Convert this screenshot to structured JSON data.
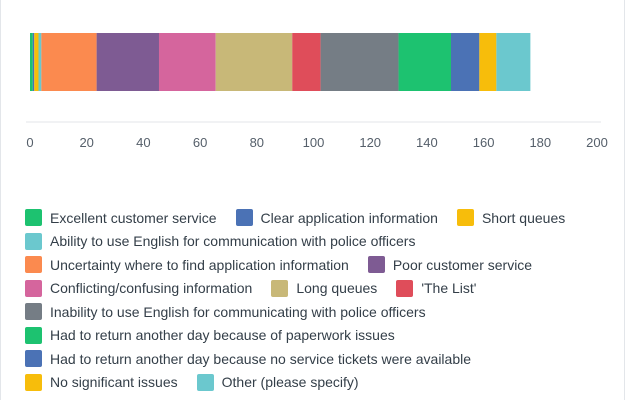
{
  "chart_data": {
    "type": "bar",
    "orientation": "horizontal",
    "stacked": true,
    "title": "",
    "xlabel": "",
    "ylabel": "",
    "xlim": [
      0,
      200
    ],
    "xticks": [
      0,
      20,
      40,
      60,
      80,
      100,
      120,
      140,
      160,
      180,
      200
    ],
    "grid": false,
    "legend_position": "bottom",
    "series": [
      {
        "name": "Excellent customer service",
        "value": 1,
        "color": "#1dc270"
      },
      {
        "name": "Clear application information",
        "value": 0.5,
        "color": "#4b72b5"
      },
      {
        "name": "Short queues",
        "value": 1.5,
        "color": "#f7bd0b"
      },
      {
        "name": "Ability to use English for communication with police officers",
        "value": 1,
        "color": "#6bc8ce"
      },
      {
        "name": "Uncertainty where to find application information",
        "value": 19.5,
        "color": "#fb8a4f"
      },
      {
        "name": "Poor customer service",
        "value": 22,
        "color": "#7e5b93"
      },
      {
        "name": "Conflicting/confusing information",
        "value": 20,
        "color": "#d5659d"
      },
      {
        "name": "Long queues",
        "value": 27,
        "color": "#c8b878"
      },
      {
        "name": "'The List'",
        "value": 10,
        "color": "#df4d5a"
      },
      {
        "name": "Inability to use English for communicating with police officers",
        "value": 27.5,
        "color": "#757d85"
      },
      {
        "name": "Had to return another day because of paperwork issues",
        "value": 18.5,
        "color": "#1dc270"
      },
      {
        "name": "Had to return another day because no service tickets were available",
        "value": 10,
        "color": "#4b72b5"
      },
      {
        "name": "No significant issues",
        "value": 6,
        "color": "#f7bd0b"
      },
      {
        "name": "Other (please specify)",
        "value": 12,
        "color": "#6bc8ce"
      }
    ]
  },
  "legend_rows": [
    [
      0,
      1,
      2
    ],
    [
      3
    ],
    [
      4,
      5
    ],
    [
      6,
      7,
      8
    ],
    [
      9
    ],
    [
      10
    ],
    [
      11
    ],
    [
      12,
      13
    ]
  ]
}
